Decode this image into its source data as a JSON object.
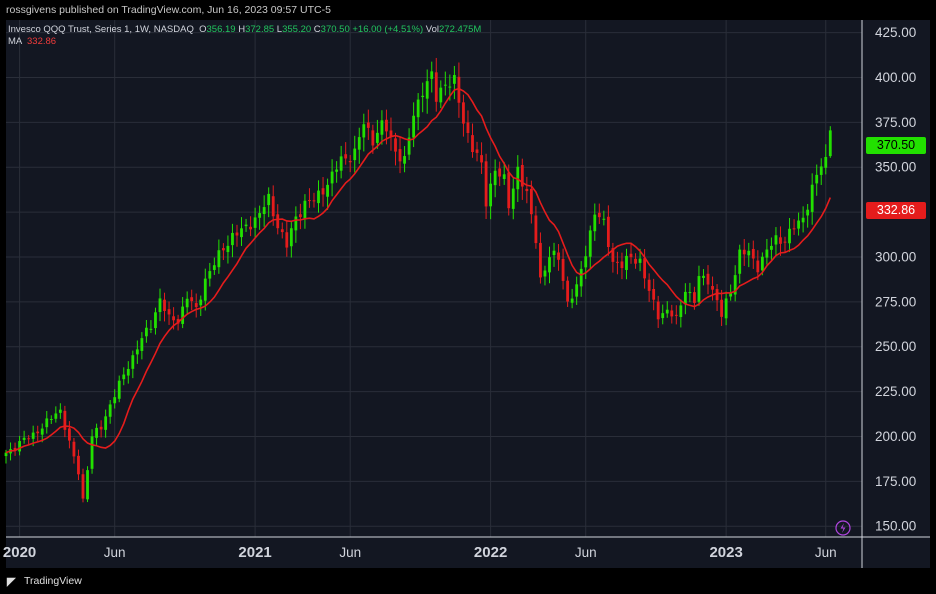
{
  "header": {
    "published": "rossgivens published on TradingView.com, Jun 16, 2023 09:57 UTC-5"
  },
  "legend": {
    "symbol": "Invesco QQQ Trust, Series 1, 1W, NASDAQ",
    "o_label": "O",
    "o_value": "356.19",
    "h_label": "H",
    "h_value": "372.85",
    "l_label": "L",
    "l_value": "355.20",
    "c_label": "C",
    "c_value": "370.50",
    "change": "+16.00 (+4.51%)",
    "vol_label": "Vol",
    "vol_value": "272.475M",
    "ma_label": "MA",
    "ma_value": "332.86"
  },
  "price_tags": {
    "last": "370.50",
    "ma": "332.86"
  },
  "footer": {
    "brand": "TradingView"
  },
  "colors": {
    "up": "#22e000",
    "down": "#e51c1c",
    "ma": "#e51c1c",
    "background": "#131722",
    "grid": "#2a2e39",
    "axis_text": "#d1d4dc"
  },
  "icons": {
    "replay": "lightning-icon",
    "logo": "tradingview-logo-icon"
  },
  "chart_data": {
    "type": "candlestick",
    "title": "Invesco QQQ Trust, Series 1, 1W, NASDAQ",
    "y_ticks": [
      150,
      175,
      200,
      225,
      250,
      275,
      300,
      325,
      350,
      375,
      400,
      425
    ],
    "y_tick_labels": [
      "150.00",
      "175.00",
      "200.00",
      "225.00",
      "250.00",
      "275.00",
      "300.00",
      "325.00",
      "350.00",
      "375.00",
      "400.00",
      "425.00"
    ],
    "ylim": [
      144,
      432
    ],
    "x_ticks": [
      {
        "label": "2020",
        "week": 3,
        "bold": true
      },
      {
        "label": "Jun",
        "week": 24,
        "bold": false
      },
      {
        "label": "2021",
        "week": 55,
        "bold": true
      },
      {
        "label": "Jun",
        "week": 76,
        "bold": false
      },
      {
        "label": "2022",
        "week": 107,
        "bold": true
      },
      {
        "label": "Jun",
        "week": 128,
        "bold": false
      },
      {
        "label": "2023",
        "week": 159,
        "bold": true
      },
      {
        "label": "Jun",
        "week": 181,
        "bold": false
      }
    ],
    "x_range_weeks": [
      0,
      189
    ],
    "grid": true,
    "ma_last": 332.86,
    "close_anchors": [
      [
        0,
        191
      ],
      [
        4,
        198
      ],
      [
        8,
        205
      ],
      [
        11,
        213
      ],
      [
        12,
        215
      ],
      [
        14,
        196
      ],
      [
        16,
        180
      ],
      [
        17,
        165
      ],
      [
        19,
        200
      ],
      [
        21,
        205
      ],
      [
        23,
        218
      ],
      [
        26,
        234
      ],
      [
        29,
        250
      ],
      [
        32,
        262
      ],
      [
        34,
        277
      ],
      [
        36,
        265
      ],
      [
        38,
        265
      ],
      [
        40,
        278
      ],
      [
        42,
        270
      ],
      [
        44,
        288
      ],
      [
        46,
        296
      ],
      [
        48,
        305
      ],
      [
        50,
        312
      ],
      [
        52,
        314
      ],
      [
        54,
        319
      ],
      [
        56,
        324
      ],
      [
        58,
        332
      ],
      [
        60,
        318
      ],
      [
        62,
        306
      ],
      [
        64,
        322
      ],
      [
        66,
        330
      ],
      [
        68,
        331
      ],
      [
        70,
        338
      ],
      [
        72,
        345
      ],
      [
        74,
        354
      ],
      [
        77,
        358
      ],
      [
        79,
        374
      ],
      [
        81,
        366
      ],
      [
        83,
        373
      ],
      [
        84,
        371
      ],
      [
        86,
        360
      ],
      [
        88,
        353
      ],
      [
        90,
        379
      ],
      [
        92,
        394
      ],
      [
        94,
        400
      ],
      [
        95,
        388
      ],
      [
        97,
        398
      ],
      [
        99,
        397
      ],
      [
        101,
        375
      ],
      [
        103,
        362
      ],
      [
        105,
        350
      ],
      [
        106,
        330
      ],
      [
        108,
        350
      ],
      [
        110,
        342
      ],
      [
        111,
        328
      ],
      [
        113,
        350
      ],
      [
        115,
        334
      ],
      [
        117,
        310
      ],
      [
        118,
        288
      ],
      [
        120,
        300
      ],
      [
        122,
        300
      ],
      [
        124,
        275
      ],
      [
        126,
        282
      ],
      [
        128,
        303
      ],
      [
        130,
        325
      ],
      [
        132,
        318
      ],
      [
        134,
        298
      ],
      [
        136,
        295
      ],
      [
        138,
        300
      ],
      [
        140,
        298
      ],
      [
        142,
        280
      ],
      [
        144,
        268
      ],
      [
        146,
        270
      ],
      [
        148,
        265
      ],
      [
        150,
        283
      ],
      [
        152,
        275
      ],
      [
        153,
        288
      ],
      [
        155,
        288
      ],
      [
        157,
        275
      ],
      [
        158,
        267
      ],
      [
        160,
        282
      ],
      [
        162,
        302
      ],
      [
        164,
        302
      ],
      [
        166,
        295
      ],
      [
        168,
        303
      ],
      [
        170,
        310
      ],
      [
        172,
        310
      ],
      [
        174,
        316
      ],
      [
        176,
        322
      ],
      [
        178,
        338
      ],
      [
        180,
        351
      ],
      [
        181,
        354
      ],
      [
        182,
        370.5
      ]
    ]
  }
}
